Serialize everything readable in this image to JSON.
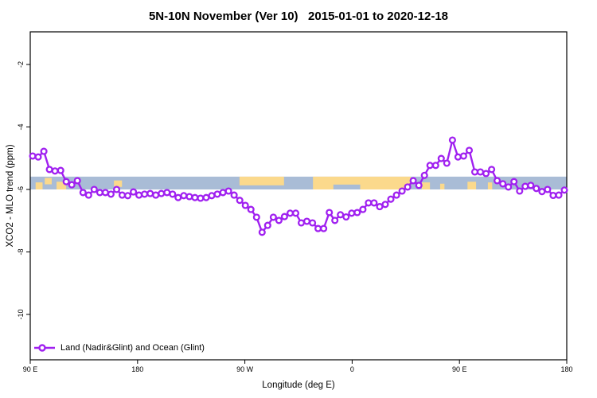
{
  "chart_data": {
    "type": "line",
    "title": "5N-10N November (Ver 10)   2015-01-01 to 2020-12-18",
    "xlabel": "Longitude (deg E)",
    "ylabel": "XCO2 - MLO trend (ppm)",
    "x_ticks": [
      {
        "lon": 90,
        "label": "90 E"
      },
      {
        "lon": 180,
        "label": "180"
      },
      {
        "lon": 270,
        "label": "90 W"
      },
      {
        "lon": 360,
        "label": "0"
      },
      {
        "lon": 450,
        "label": "90 E"
      },
      {
        "lon": 540,
        "label": "180"
      }
    ],
    "y_ticks": [
      {
        "value": -2,
        "label": "-2"
      },
      {
        "value": -4,
        "label": "-4"
      },
      {
        "value": -6,
        "label": "-6"
      },
      {
        "value": -8,
        "label": "-8"
      },
      {
        "value": -10,
        "label": "-10"
      }
    ],
    "xlim_lon": [
      90,
      540
    ],
    "ylim": [
      -11.5,
      -0.95
    ],
    "grid": false,
    "legend_position": "bottom-left",
    "legend_label": "Land (Nadir&Glint) and Ocean (Glint)",
    "line_color": "#A020F0",
    "marker": "open-circle",
    "marker_fill": "#ffffff",
    "series": [
      {
        "name": "Land (Nadir&Glint) and Ocean (Glint)",
        "lon_start": 92,
        "lon_end": 538,
        "values": [
          -4.93,
          -4.96,
          -4.78,
          -5.36,
          -5.41,
          -5.39,
          -5.75,
          -5.85,
          -5.72,
          -6.1,
          -6.18,
          -6.0,
          -6.1,
          -6.1,
          -6.15,
          -6.0,
          -6.18,
          -6.2,
          -6.08,
          -6.18,
          -6.15,
          -6.13,
          -6.18,
          -6.13,
          -6.1,
          -6.15,
          -6.26,
          -6.2,
          -6.23,
          -6.26,
          -6.28,
          -6.26,
          -6.2,
          -6.15,
          -6.1,
          -6.05,
          -6.18,
          -6.35,
          -6.51,
          -6.64,
          -6.89,
          -7.37,
          -7.15,
          -6.89,
          -6.99,
          -6.87,
          -6.76,
          -6.76,
          -7.07,
          -7.02,
          -7.07,
          -7.25,
          -7.25,
          -6.74,
          -6.99,
          -6.81,
          -6.88,
          -6.76,
          -6.74,
          -6.64,
          -6.43,
          -6.43,
          -6.55,
          -6.48,
          -6.31,
          -6.18,
          -6.05,
          -5.92,
          -5.72,
          -5.87,
          -5.55,
          -5.23,
          -5.23,
          -5.01,
          -5.16,
          -4.42,
          -4.96,
          -4.93,
          -4.75,
          -5.44,
          -5.44,
          -5.49,
          -5.36,
          -5.72,
          -5.82,
          -5.92,
          -5.75,
          -6.05,
          -5.9,
          -5.87,
          -5.97,
          -6.07,
          -6.0,
          -6.19,
          -6.18,
          -6.02
        ]
      }
    ],
    "map_band": {
      "value_top": -5.59,
      "value_bottom": -6.0,
      "ocean_color": "#A9BCD6",
      "land_color": "#FBD98C",
      "land_segments": [
        {
          "f0": 0.01,
          "f1": 0.023,
          "t0": 0.45,
          "t1": 1.0
        },
        {
          "f0": 0.027,
          "f1": 0.04,
          "t0": 0.1,
          "t1": 0.6
        },
        {
          "f0": 0.049,
          "f1": 0.067,
          "t0": 0.4,
          "t1": 1.0
        },
        {
          "f0": 0.156,
          "f1": 0.171,
          "t0": 0.3,
          "t1": 0.8
        },
        {
          "f0": 0.39,
          "f1": 0.473,
          "t0": 0.0,
          "t1": 0.68
        },
        {
          "f0": 0.527,
          "f1": 0.709,
          "t0": 0.0,
          "t1": 1.0
        },
        {
          "f0": 0.73,
          "f1": 0.745,
          "t0": 0.45,
          "t1": 1.0
        },
        {
          "f0": 0.764,
          "f1": 0.772,
          "t0": 0.55,
          "t1": 1.0
        },
        {
          "f0": 0.815,
          "f1": 0.831,
          "t0": 0.4,
          "t1": 1.0
        },
        {
          "f0": 0.853,
          "f1": 0.861,
          "t0": 0.45,
          "t1": 1.0
        }
      ],
      "water_notches": [
        {
          "f0": 0.565,
          "f1": 0.615,
          "t0": 0.62,
          "t1": 1.0
        }
      ]
    }
  }
}
